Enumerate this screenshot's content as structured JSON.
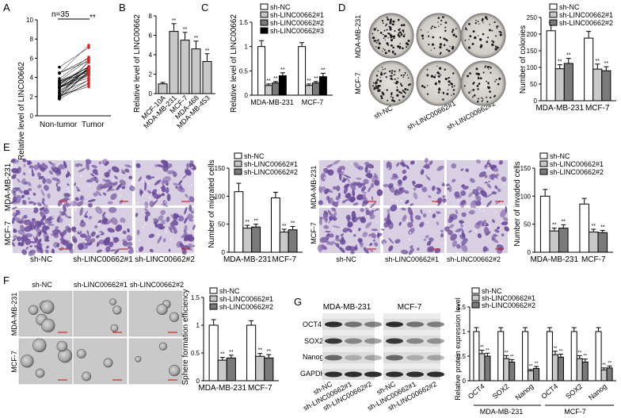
{
  "panel_letters": [
    "A",
    "B",
    "C",
    "D",
    "E",
    "F",
    "G"
  ],
  "palette": {
    "white": "#ffffff",
    "light": "#c8c8c8",
    "mid": "#7a7a7a",
    "black": "#000000",
    "tumor": "#e0201c",
    "tissue": "#b9a7c9",
    "stain": "#6a4a9a",
    "colony_dish": "#d9d6d1",
    "sphere_bg": "#c9c9c9"
  },
  "chart_data": [
    {
      "panel": "A",
      "type": "scatter",
      "ylabel": "Relative level of LINC00662",
      "categories": [
        "Non-tumor",
        "Tumor"
      ],
      "annotation_n": "n=35",
      "significance": "**",
      "ylim": [
        0,
        10
      ],
      "yticks": [
        0,
        2,
        4,
        6,
        8,
        10
      ]
    },
    {
      "panel": "B",
      "type": "bar",
      "ylabel": "Relative level of LINC00662",
      "categories": [
        "MCF-10A",
        "MDA-MB-231",
        "MCF-7",
        "MDA-468",
        "MDA-MB-453"
      ],
      "values": [
        1.0,
        6.4,
        5.5,
        4.6,
        3.3
      ],
      "errors": [
        0.15,
        0.8,
        0.8,
        0.8,
        0.8
      ],
      "significance": [
        "",
        "**",
        "**",
        "**",
        "**"
      ],
      "ylim": [
        0,
        8
      ],
      "yticks": [
        0,
        2,
        4,
        6,
        8
      ]
    },
    {
      "panel": "C",
      "type": "bar",
      "ylabel": "Relative level of LINC00662",
      "categories": [
        "MDA-MB-231",
        "MCF-7"
      ],
      "series": [
        {
          "name": "sh-NC",
          "values": [
            1.0,
            1.0
          ],
          "errors": [
            0.12,
            0.08
          ]
        },
        {
          "name": "sh-LINC00662#1",
          "values": [
            0.2,
            0.2
          ],
          "errors": [
            0.03,
            0.03
          ]
        },
        {
          "name": "sh-LINC00662#2",
          "values": [
            0.25,
            0.25
          ],
          "errors": [
            0.03,
            0.03
          ]
        },
        {
          "name": "sh-LINC00662#3",
          "values": [
            0.4,
            0.38
          ],
          "errors": [
            0.06,
            0.07
          ]
        }
      ],
      "significance": "**",
      "ylim": [
        0,
        1.5
      ],
      "yticks": [
        0.0,
        0.5,
        1.0,
        1.5
      ]
    },
    {
      "panel": "D",
      "type": "bar",
      "ylabel": "Number of colonies",
      "categories": [
        "MDA-MB-231",
        "MCF-7"
      ],
      "series": [
        {
          "name": "sh-NC",
          "values": [
            210,
            188
          ],
          "errors": [
            25,
            20
          ]
        },
        {
          "name": "sh-LINC00662#1",
          "values": [
            96,
            95
          ],
          "errors": [
            12,
            15
          ]
        },
        {
          "name": "sh-LINC00662#2",
          "values": [
            112,
            90
          ],
          "errors": [
            15,
            12
          ]
        }
      ],
      "significance": "**",
      "ylim": [
        0,
        250
      ],
      "yticks": [
        0,
        50,
        100,
        150,
        200,
        250
      ]
    },
    {
      "panel": "E-migration",
      "type": "bar",
      "ylabel": "Number of migrated cells",
      "categories": [
        "MDA-MB-231",
        "MCF-7"
      ],
      "series": [
        {
          "name": "sh-NC",
          "values": [
            108,
            97
          ],
          "errors": [
            15,
            10
          ]
        },
        {
          "name": "sh-LINC00662#1",
          "values": [
            43,
            36
          ],
          "errors": [
            5,
            5
          ]
        },
        {
          "name": "sh-LINC00662#2",
          "values": [
            45,
            40
          ],
          "errors": [
            5,
            6
          ]
        }
      ],
      "significance": "**",
      "ylim": [
        0,
        150
      ],
      "yticks": [
        0,
        50,
        100,
        150
      ]
    },
    {
      "panel": "E-invasion",
      "type": "bar",
      "ylabel": "Number of invaded cells",
      "categories": [
        "MDA-MB-231",
        "MCF-7"
      ],
      "series": [
        {
          "name": "sh-NC",
          "values": [
            100,
            86
          ],
          "errors": [
            12,
            10
          ]
        },
        {
          "name": "sh-LINC00662#1",
          "values": [
            38,
            36
          ],
          "errors": [
            5,
            5
          ]
        },
        {
          "name": "sh-LINC00662#2",
          "values": [
            43,
            35
          ],
          "errors": [
            6,
            4
          ]
        }
      ],
      "significance": "**",
      "ylim": [
        0,
        150
      ],
      "yticks": [
        0,
        50,
        100,
        150
      ]
    },
    {
      "panel": "F",
      "type": "bar",
      "ylabel": "Sphere formation efficiency",
      "categories": [
        "MDA-MB-231",
        "MCF-7"
      ],
      "series": [
        {
          "name": "sh-NC",
          "values": [
            1.0,
            1.0
          ],
          "errors": [
            0.1,
            0.08
          ]
        },
        {
          "name": "sh-LINC00662#1",
          "values": [
            0.37,
            0.44
          ],
          "errors": [
            0.05,
            0.05
          ]
        },
        {
          "name": "sh-LINC00662#2",
          "values": [
            0.41,
            0.41
          ],
          "errors": [
            0.05,
            0.06
          ]
        }
      ],
      "significance": "**",
      "ylim": [
        0,
        1.5
      ],
      "yticks": [
        0.0,
        0.5,
        1.0,
        1.5
      ]
    },
    {
      "panel": "G",
      "type": "bar",
      "ylabel": "Relative protein expression level",
      "categories": [
        "OCT4",
        "SOX2",
        "Nanog",
        "OCT4",
        "SOX2",
        "Nanog"
      ],
      "groups": [
        "MDA-MB-231",
        "MCF-7"
      ],
      "series": [
        {
          "name": "sh-NC",
          "values": [
            1.0,
            1.0,
            1.0,
            1.0,
            1.0,
            1.0
          ],
          "errors": [
            0.08,
            0.08,
            0.08,
            0.08,
            0.08,
            0.08
          ]
        },
        {
          "name": "sh-LINC00662#1",
          "values": [
            0.55,
            0.45,
            0.2,
            0.53,
            0.45,
            0.22
          ],
          "errors": [
            0.07,
            0.06,
            0.03,
            0.07,
            0.06,
            0.04
          ]
        },
        {
          "name": "sh-LINC00662#2",
          "values": [
            0.5,
            0.38,
            0.25,
            0.48,
            0.38,
            0.26
          ],
          "errors": [
            0.06,
            0.05,
            0.04,
            0.06,
            0.06,
            0.04
          ]
        }
      ],
      "significance": "**",
      "ylim": [
        0,
        1.5
      ],
      "yticks": [
        0.0,
        0.5,
        1.0,
        1.5
      ]
    }
  ],
  "images": {
    "D": {
      "rows": [
        "MDA-MB-231",
        "MCF-7"
      ],
      "cols": [
        "sh-NC",
        "sh-LINC00662#1",
        "sh-LINC00662#2"
      ]
    },
    "E_left": {
      "rows": [
        "MDA-MB-231",
        "MCF-7"
      ],
      "cols": [
        "sh-NC",
        "sh-LINC00662#1",
        "sh-LINC00662#2"
      ]
    },
    "E_right": {
      "rows": [
        "MDA-MB-231",
        "MCF-7"
      ],
      "cols": [
        "sh-NC",
        "sh-LINC00662#1",
        "sh-LINC00662#2"
      ]
    },
    "F": {
      "rows": [
        "MDA-MB-231",
        "MCF-7"
      ],
      "cols": [
        "sh-NC",
        "sh-LINC00662#1",
        "sh-LINC00662#2"
      ]
    },
    "G": {
      "groups": [
        "MDA-MB-231",
        "MCF-7"
      ],
      "proteins": [
        "OCT4",
        "SOX2",
        "Nanog",
        "GAPDH"
      ],
      "lanes": [
        "sh-NC",
        "sh-LINC00662#1",
        "sh-LINC00662#2",
        "sh-NC",
        "sh-LINC00662#1",
        "sh-LINC00662#2"
      ]
    }
  }
}
